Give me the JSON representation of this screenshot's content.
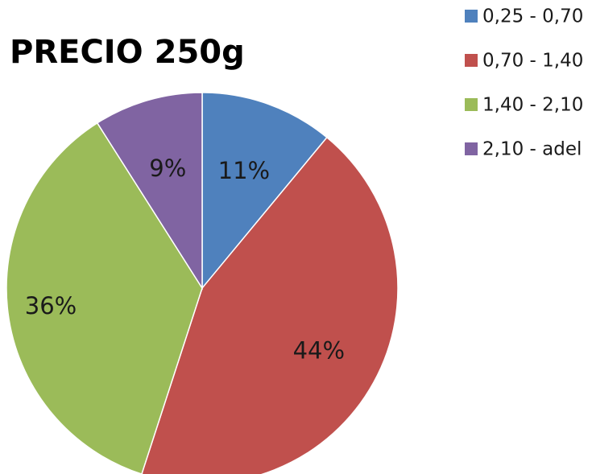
{
  "chart_data": {
    "type": "pie",
    "title": "PRECIO 250g",
    "categories": [
      "0,25 - 0,70",
      "0,70 - 1,40",
      "1,40 - 2,10",
      "2,10 - adel"
    ],
    "values": [
      11,
      44,
      36,
      9
    ],
    "value_labels": [
      "11%",
      "44%",
      "36%",
      "9%"
    ],
    "colors": [
      "#4F81BD",
      "#C0504D",
      "#9BBB59",
      "#8064A2"
    ],
    "start_angle": "12 o'clock",
    "direction": "clockwise",
    "legend": "top-right"
  }
}
